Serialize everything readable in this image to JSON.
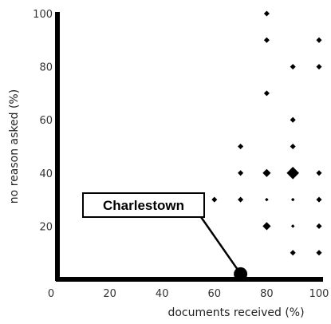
{
  "chart_data": {
    "type": "scatter",
    "title": "",
    "xlabel": "documents received (%)",
    "ylabel": "no reason asked (%)",
    "xlim": [
      0,
      100
    ],
    "ylim": [
      0,
      100
    ],
    "xticks": [
      "0",
      "20",
      "40",
      "60",
      "80",
      "100"
    ],
    "yticks": [
      "0",
      "20",
      "40",
      "60",
      "80",
      "100"
    ],
    "grid": false,
    "points": [
      {
        "x": 80,
        "y": 100,
        "size": "small"
      },
      {
        "x": 80,
        "y": 90,
        "size": "small"
      },
      {
        "x": 100,
        "y": 90,
        "size": "small"
      },
      {
        "x": 90,
        "y": 80,
        "size": "small"
      },
      {
        "x": 100,
        "y": 80,
        "size": "small"
      },
      {
        "x": 80,
        "y": 70,
        "size": "small"
      },
      {
        "x": 90,
        "y": 60,
        "size": "small"
      },
      {
        "x": 70,
        "y": 50,
        "size": "small"
      },
      {
        "x": 90,
        "y": 50,
        "size": "small"
      },
      {
        "x": 70,
        "y": 40,
        "size": "small"
      },
      {
        "x": 80,
        "y": 40,
        "size": "medium"
      },
      {
        "x": 90,
        "y": 40,
        "size": "large"
      },
      {
        "x": 100,
        "y": 40,
        "size": "small"
      },
      {
        "x": 60,
        "y": 30,
        "size": "small"
      },
      {
        "x": 70,
        "y": 30,
        "size": "small"
      },
      {
        "x": 80,
        "y": 30,
        "size": "tiny"
      },
      {
        "x": 90,
        "y": 30,
        "size": "tiny"
      },
      {
        "x": 100,
        "y": 30,
        "size": "small"
      },
      {
        "x": 90,
        "y": 20,
        "size": "tiny"
      },
      {
        "x": 80,
        "y": 20,
        "size": "medium"
      },
      {
        "x": 100,
        "y": 20,
        "size": "small"
      },
      {
        "x": 90,
        "y": 10,
        "size": "small"
      },
      {
        "x": 100,
        "y": 10,
        "size": "small"
      },
      {
        "x": 70,
        "y": 2,
        "size": "xlarge"
      }
    ],
    "annotations": [
      {
        "text": "Charlestown",
        "x": 70,
        "y": 2
      }
    ],
    "colors": {
      "marker": "#000000",
      "axis": "#000000"
    }
  }
}
